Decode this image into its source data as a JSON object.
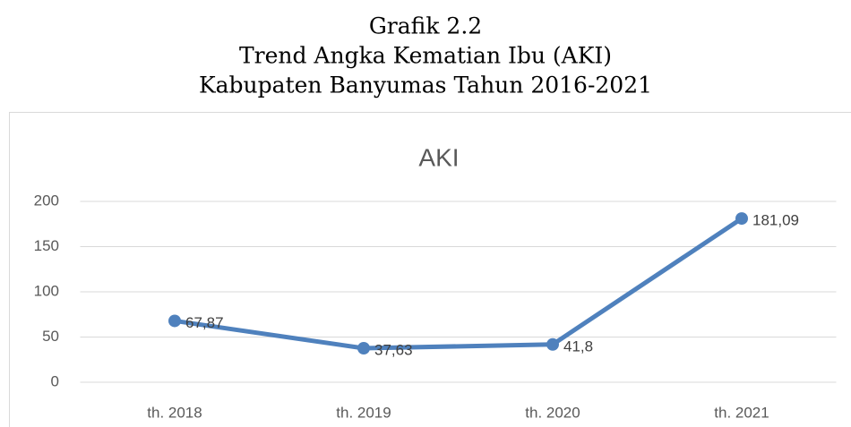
{
  "heading": [
    "Grafik 2.2",
    "Trend Angka Kematian Ibu (AKI)",
    "Kabupaten Banyumas Tahun 2016-2021"
  ],
  "chart_data": {
    "type": "line",
    "title": "AKI",
    "categories": [
      "th. 2018",
      "th. 2019",
      "th. 2020",
      "th. 2021"
    ],
    "values": [
      67.87,
      37.63,
      41.8,
      181.09
    ],
    "value_labels": [
      "67,87",
      "37,63",
      "41,8",
      "181,09"
    ],
    "color": "#4f81bd",
    "ylim": [
      0,
      200
    ],
    "yticks": [
      0,
      50,
      100,
      150,
      200
    ],
    "grid": true
  }
}
